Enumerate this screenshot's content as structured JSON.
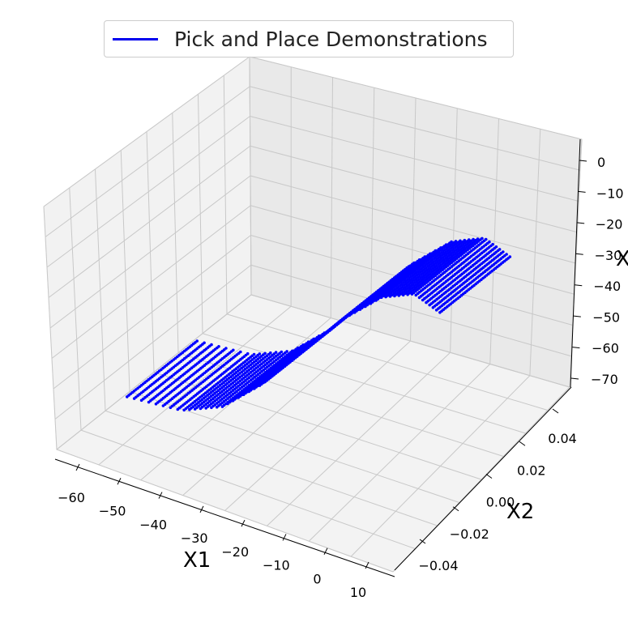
{
  "chart_data": {
    "type": "scatter",
    "projection": "3d",
    "series": [
      {
        "name": "Pick and Place Demonstrations",
        "color": "#0000ff",
        "sample_trajectory": [
          {
            "x1": -63,
            "x2": 0.0,
            "x3": -70
          },
          {
            "x1": -50,
            "x2": 0.0,
            "x3": -68
          },
          {
            "x1": -40,
            "x2": 0.0,
            "x3": -62
          },
          {
            "x1": -30,
            "x2": 0.0,
            "x3": -50
          },
          {
            "x1": -20,
            "x2": 0.0,
            "x3": -35
          },
          {
            "x1": -10,
            "x2": 0.0,
            "x3": -20
          },
          {
            "x1": 0,
            "x2": 0.0,
            "x3": -8
          },
          {
            "x1": 8,
            "x2": 0.0,
            "x3": -3
          },
          {
            "x1": 14,
            "x2": 0.0,
            "x3": -6
          }
        ]
      }
    ],
    "xlabel": "X1",
    "ylabel": "X2",
    "zlabel": "X",
    "xticks": [
      "−60",
      "−50",
      "−40",
      "−30",
      "−20",
      "−10",
      "0",
      "10"
    ],
    "yticks": [
      "−0.04",
      "−0.02",
      "0.00",
      "0.02",
      "0.04"
    ],
    "zticks": [
      "0",
      "−10",
      "−20",
      "−30",
      "−40",
      "−50",
      "−60",
      "−70"
    ],
    "xlim": [
      -65,
      15
    ],
    "ylim": [
      -0.05,
      0.05
    ],
    "zlim": [
      -72,
      5
    ],
    "grid": true,
    "legend_position": "top-center"
  }
}
